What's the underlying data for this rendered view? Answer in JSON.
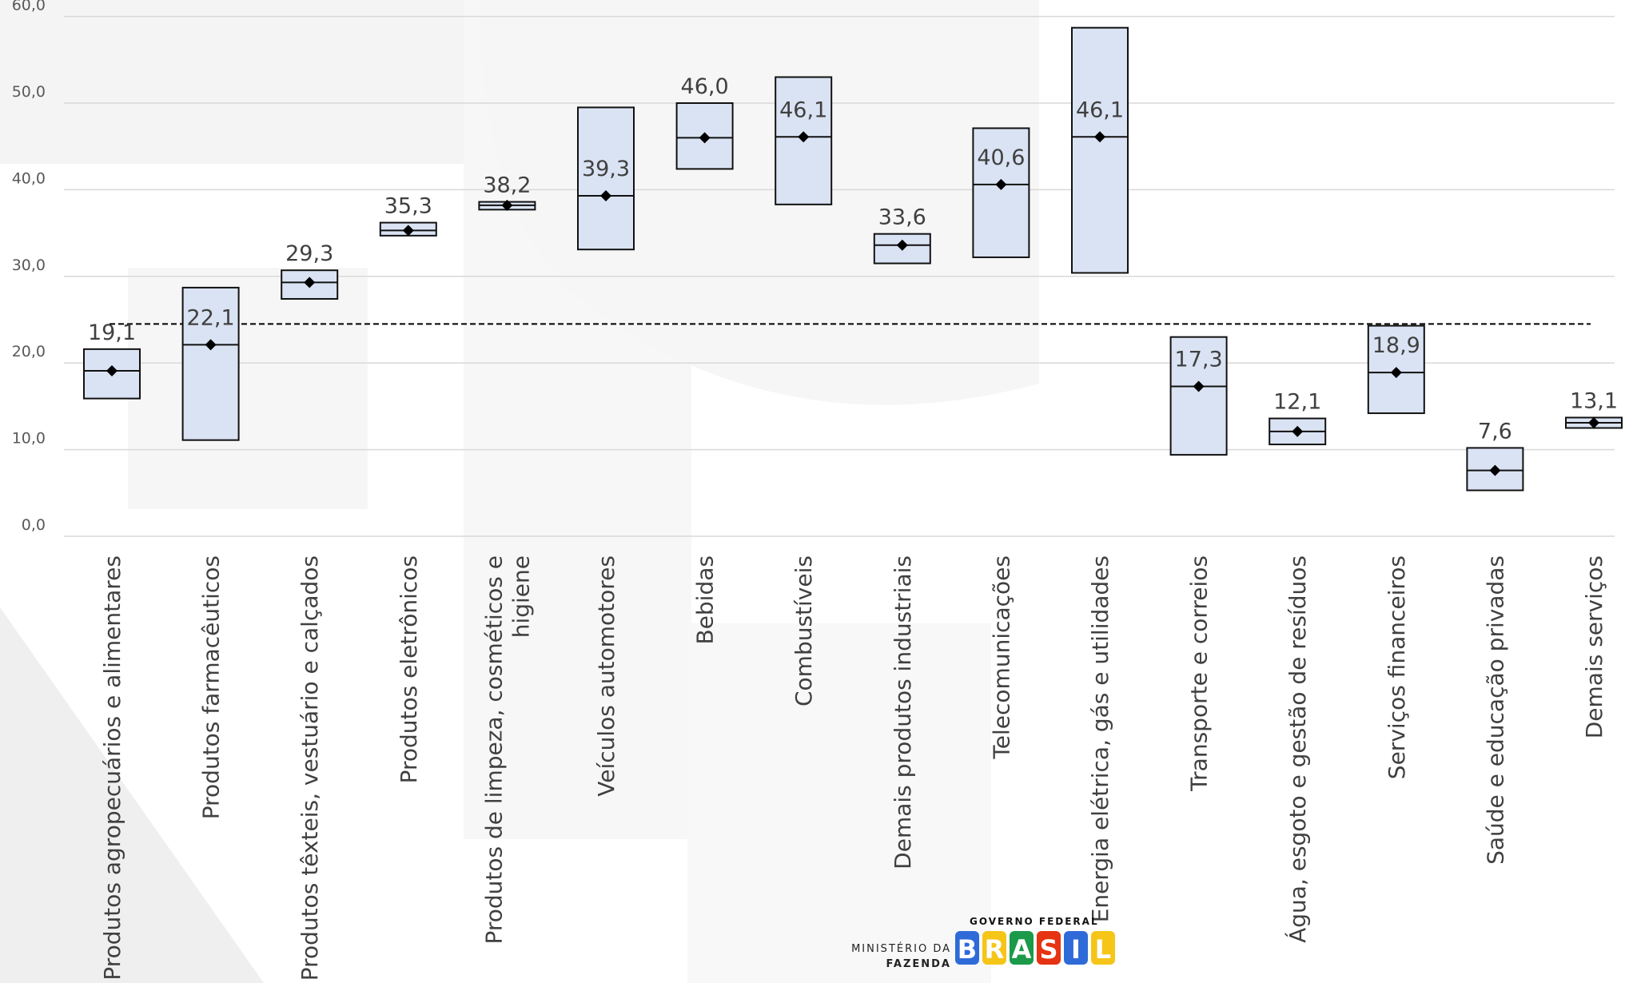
{
  "chart_data": {
    "type": "box",
    "y_ticks": [
      "0,0",
      "10,0",
      "20,0",
      "30,0",
      "40,0",
      "50,0",
      "60,0"
    ],
    "ylim": [
      0,
      60
    ],
    "grid": true,
    "reference_line": {
      "value": 24.5,
      "style": "dashed"
    },
    "categories": [
      {
        "label_lines": [
          "Produtos agropecuários e alimentares"
        ],
        "low": 15.9,
        "high": 21.6,
        "value": 19.1,
        "value_label": "19,1"
      },
      {
        "label_lines": [
          "Produtos farmacêuticos"
        ],
        "low": 11.1,
        "high": 28.7,
        "value": 22.1,
        "value_label": "22,1"
      },
      {
        "label_lines": [
          "Produtos têxteis, vestuário e calçados"
        ],
        "low": 27.4,
        "high": 30.7,
        "value": 29.3,
        "value_label": "29,3"
      },
      {
        "label_lines": [
          "Produtos eletrônicos"
        ],
        "low": 34.7,
        "high": 36.2,
        "value": 35.3,
        "value_label": "35,3"
      },
      {
        "label_lines": [
          "Produtos de limpeza, cosméticos e",
          "higiene"
        ],
        "low": 37.7,
        "high": 38.6,
        "value": 38.2,
        "value_label": "38,2"
      },
      {
        "label_lines": [
          "Veículos automotores"
        ],
        "low": 33.1,
        "high": 49.5,
        "value": 39.3,
        "value_label": "39,3"
      },
      {
        "label_lines": [
          "Bebidas"
        ],
        "low": 42.4,
        "high": 50.0,
        "value": 46.0,
        "value_label": "46,0"
      },
      {
        "label_lines": [
          "Combustíveis"
        ],
        "low": 38.3,
        "high": 53.0,
        "value": 46.1,
        "value_label": "46,1"
      },
      {
        "label_lines": [
          "Demais produtos industriais"
        ],
        "low": 31.5,
        "high": 34.9,
        "value": 33.6,
        "value_label": "33,6"
      },
      {
        "label_lines": [
          "Telecomunicações"
        ],
        "low": 32.2,
        "high": 47.1,
        "value": 40.6,
        "value_label": "40,6"
      },
      {
        "label_lines": [
          "Energia elétrica, gás e utilidades"
        ],
        "low": 30.4,
        "high": 58.7,
        "value": 46.1,
        "value_label": "46,1"
      },
      {
        "label_lines": [
          "Transporte e correios"
        ],
        "low": 9.4,
        "high": 23.0,
        "value": 17.3,
        "value_label": "17,3"
      },
      {
        "label_lines": [
          "Água, esgoto e gestão de resíduos"
        ],
        "low": 10.6,
        "high": 13.6,
        "value": 12.1,
        "value_label": "12,1"
      },
      {
        "label_lines": [
          "Serviços financeiros"
        ],
        "low": 14.2,
        "high": 24.3,
        "value": 18.9,
        "value_label": "18,9"
      },
      {
        "label_lines": [
          "Saúde e educação privadas"
        ],
        "low": 5.3,
        "high": 10.2,
        "value": 7.6,
        "value_label": "7,6"
      },
      {
        "label_lines": [
          "Demais serviços"
        ],
        "low": 12.5,
        "high": 13.7,
        "value": 13.1,
        "value_label": "13,1"
      }
    ]
  },
  "colors": {
    "box_fill": "#dae3f3",
    "box_stroke": "#111111",
    "marker": "#000000",
    "gridline": "#d9d9d9",
    "reference_line": "#000000"
  },
  "footer": {
    "ministry_line1": "MINISTÉRIO DA",
    "ministry_line2": "FAZENDA",
    "gov_label": "GOVERNO FEDERAL",
    "brand_wordmark": "BRASIL",
    "brand_colors": [
      "#2f6bd8",
      "#f5c518",
      "#1b9a4a",
      "#e63312",
      "#2f6bd8",
      "#f5c518"
    ]
  }
}
